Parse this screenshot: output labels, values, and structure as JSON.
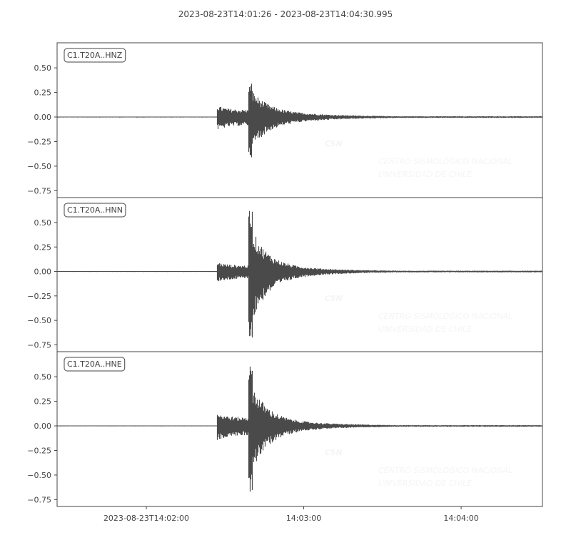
{
  "chart_data": {
    "type": "line",
    "title": "2023-08-23T14:01:26  -  2023-08-23T14:04:30.995",
    "start_time": "2023-08-23T14:01:26",
    "end_time": "2023-08-23T14:04:30.995",
    "xticks": [
      {
        "time": "14:02:00",
        "label": "2023-08-23T14:02:00"
      },
      {
        "time": "14:03:00",
        "label": "14:03:00"
      },
      {
        "time": "14:04:00",
        "label": "14:04:00"
      }
    ],
    "ylim": [
      -0.82,
      0.755
    ],
    "yticks": [
      0.5,
      0.25,
      0.0,
      -0.25,
      -0.5,
      -0.75
    ],
    "ytick_labels": [
      "0.50",
      "0.25",
      "0.00",
      "−0.25",
      "−0.50",
      "−0.75"
    ],
    "line_color": "#4a4a4a",
    "grid": false,
    "watermark": {
      "logo_text": "CSN",
      "line1": "CENTRO SISMOLÓGICO NACIONAL",
      "line2": "UNIVERSIDAD DE CHILE"
    },
    "traces": [
      {
        "label": "C1.T20A..HNZ",
        "p_onset": "14:02:26.7",
        "s_onset": "14:02:38.9",
        "p_amp": 0.12,
        "max": 0.35,
        "min": -0.41,
        "noise": 0.004
      },
      {
        "label": "C1.T20A..HNN",
        "p_onset": "14:02:26.7",
        "s_onset": "14:02:38.9",
        "p_amp": 0.1,
        "max": 0.64,
        "min": -0.77,
        "noise": 0.004
      },
      {
        "label": "C1.T20A..HNE",
        "p_onset": "14:02:26.7",
        "s_onset": "14:02:38.9",
        "p_amp": 0.14,
        "max": 0.62,
        "min": -0.69,
        "noise": 0.004
      }
    ]
  }
}
